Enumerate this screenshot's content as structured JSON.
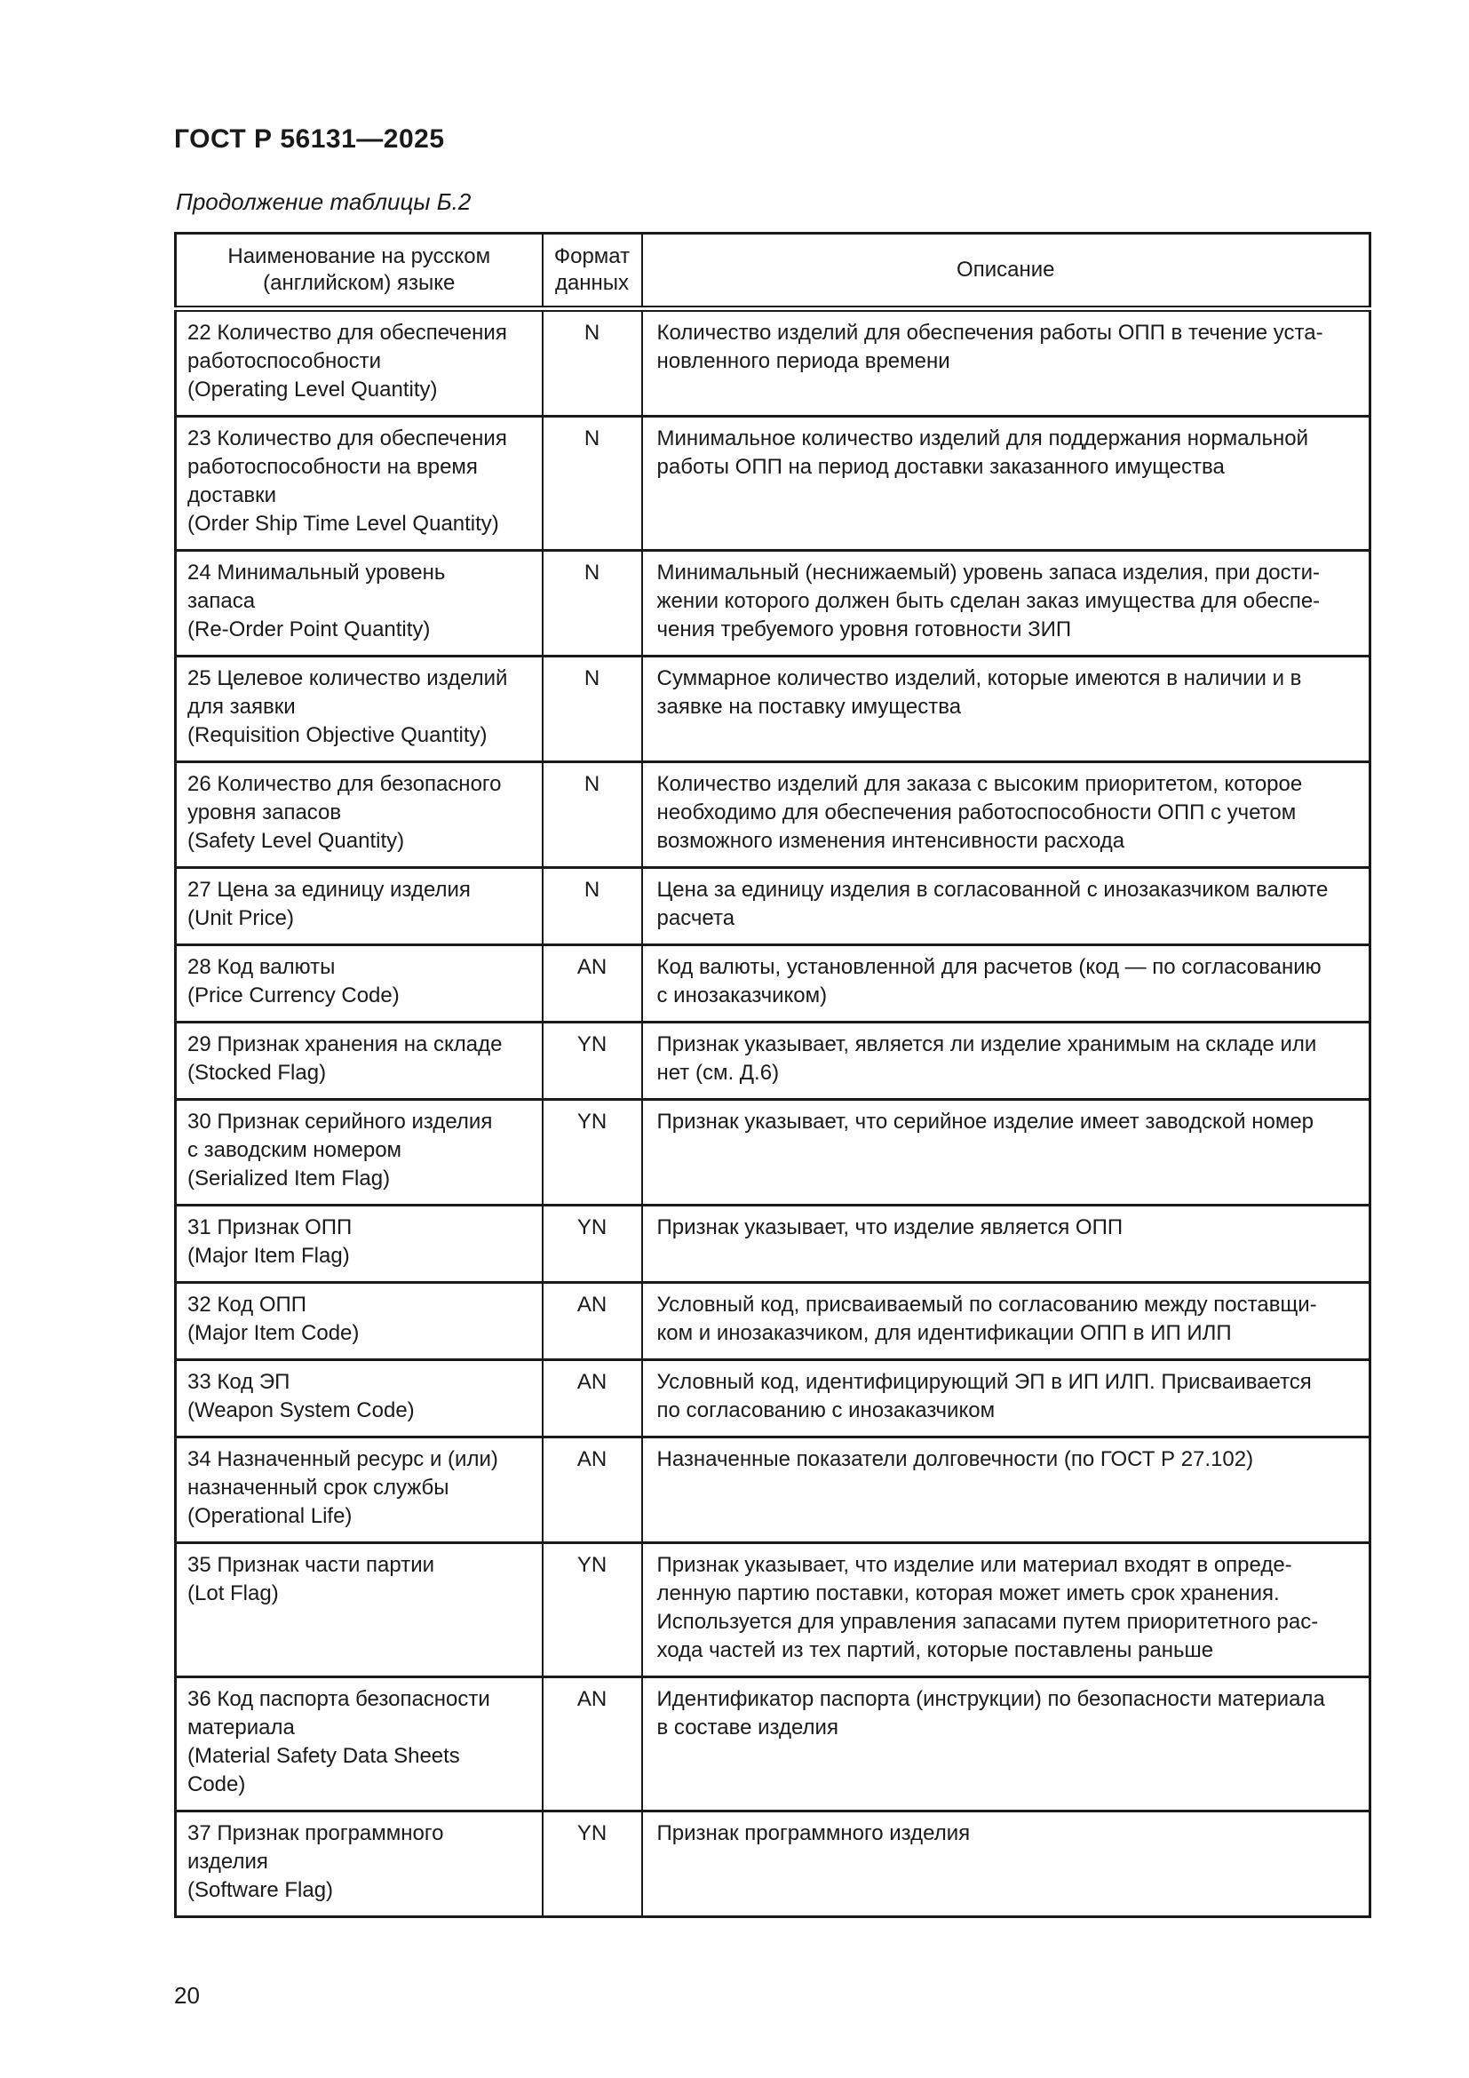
{
  "page": {
    "doc_code": "ГОСТ Р 56131—2025",
    "table_caption": "Продолжение таблицы Б.2",
    "page_number": "20"
  },
  "table": {
    "headers": {
      "name": "Наименование на русском\n(английском) языке",
      "format": "Формат\nданных",
      "description": "Описание"
    },
    "rows": [
      {
        "name": "22 Количество для обеспечения\nработоспособности\n(Operating Level Quantity)",
        "format": "N",
        "description": "Количество изделий для обеспечения работы ОПП в течение уста-\nновленного периода времени"
      },
      {
        "name": "23 Количество для обеспечения\nработоспособности на время\nдоставки\n(Order Ship Time Level Quantity)",
        "format": "N",
        "description": "Минимальное количество изделий для поддержания нормальной\nработы ОПП на период доставки заказанного имущества"
      },
      {
        "name": "24 Минимальный уровень\nзапаса\n(Re-Order Point Quantity)",
        "format": "N",
        "description": "Минимальный (неснижаемый) уровень запаса изделия, при дости-\nжении которого должен быть сделан заказ имущества для обеспе-\nчения требуемого уровня готовности ЗИП"
      },
      {
        "name": "25 Целевое количество изделий\nдля заявки\n(Requisition Objective Quantity)",
        "format": "N",
        "description": "Суммарное количество изделий, которые имеются в наличии и в\nзаявке на поставку имущества"
      },
      {
        "name": "26 Количество для безопасного\nуровня запасов\n(Safety Level Quantity)",
        "format": "N",
        "description": "Количество изделий для заказа с высоким приоритетом, которое\nнеобходимо для обеспечения работоспособности ОПП с учетом\nвозможного изменения интенсивности расхода"
      },
      {
        "name": "27 Цена за единицу изделия\n(Unit Price)",
        "format": "N",
        "description": "Цена за единицу изделия в согласованной с инозаказчиком валюте\nрасчета"
      },
      {
        "name": "28 Код валюты\n(Price Currency Code)",
        "format": "AN",
        "description": "Код валюты, установленной для расчетов (код — по согласованию\nс инозаказчиком)"
      },
      {
        "name": "29 Признак хранения на складе\n(Stocked Flag)",
        "format": "YN",
        "description": "Признак указывает, является ли изделие хранимым на складе или\nнет (см. Д.6)"
      },
      {
        "name": "30 Признак серийного изделия\nс заводским номером\n(Serialized Item Flag)",
        "format": "YN",
        "description": "Признак указывает, что серийное изделие имеет заводской номер"
      },
      {
        "name": "31 Признак ОПП\n(Major Item Flag)",
        "format": "YN",
        "description": "Признак указывает, что изделие является ОПП"
      },
      {
        "name": "32 Код ОПП\n(Major Item Code)",
        "format": "AN",
        "description": "Условный код, присваиваемый по согласованию между поставщи-\nком и инозаказчиком, для идентификации ОПП в ИП ИЛП"
      },
      {
        "name": "33 Код ЭП\n(Weapon System Code)",
        "format": "AN",
        "description": "Условный код, идентифицирующий ЭП в ИП ИЛП. Присваивается\nпо согласованию с инозаказчиком"
      },
      {
        "name": "34 Назначенный ресурс и (или)\nназначенный срок службы\n(Operational Life)",
        "format": "AN",
        "description": "Назначенные показатели долговечности (по ГОСТ Р 27.102)"
      },
      {
        "name": "35 Признак части партии\n(Lot Flag)",
        "format": "YN",
        "description": "Признак указывает, что изделие или материал входят в опреде-\nленную партию поставки, которая может иметь срок хранения.\nИспользуется для управления запасами путем приоритетного рас-\nхода частей из тех партий, которые поставлены раньше"
      },
      {
        "name": "36 Код паспорта безопасности\nматериала\n(Material Safety Data Sheets\nCode)",
        "format": "AN",
        "description": "Идентификатор паспорта (инструкции) по безопасности материала\nв составе изделия"
      },
      {
        "name": "37 Признак программного\nизделия\n(Software Flag)",
        "format": "YN",
        "description": "Признак программного изделия"
      }
    ]
  }
}
